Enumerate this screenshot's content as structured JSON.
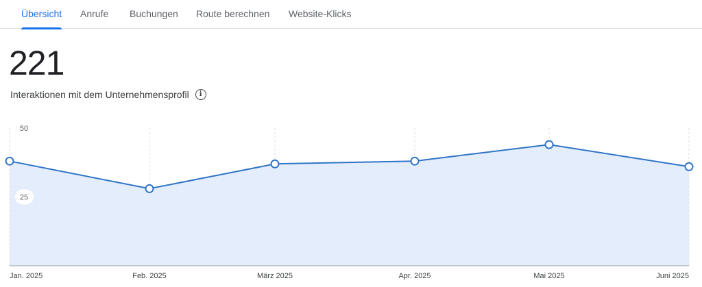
{
  "tabs": [
    {
      "label": "Übersicht",
      "active": true
    },
    {
      "label": "Anrufe",
      "active": false
    },
    {
      "label": "Buchungen",
      "active": false
    },
    {
      "label": "Route berechnen",
      "active": false
    },
    {
      "label": "Website-Klicks",
      "active": false
    }
  ],
  "summary": {
    "total": "221",
    "label": "Interaktionen mit dem Unternehmensprofil",
    "info_icon": "info-icon"
  },
  "colors": {
    "accent": "#1a73e8",
    "line": "#2f74c6",
    "area_fill": "#e3edfb",
    "gridline": "#dadce0"
  },
  "chart_data": {
    "type": "area",
    "title": "",
    "xlabel": "",
    "ylabel": "",
    "categories": [
      "Jan. 2025",
      "Feb. 2025",
      "März 2025",
      "Apr. 2025",
      "Mai 2025",
      "Juni 2025"
    ],
    "series": [
      {
        "values": [
          38,
          28,
          37,
          38,
          44,
          36
        ]
      }
    ],
    "yticks": [
      25,
      50
    ],
    "ylim": [
      0,
      50
    ],
    "grid": "vertical-dashed"
  }
}
